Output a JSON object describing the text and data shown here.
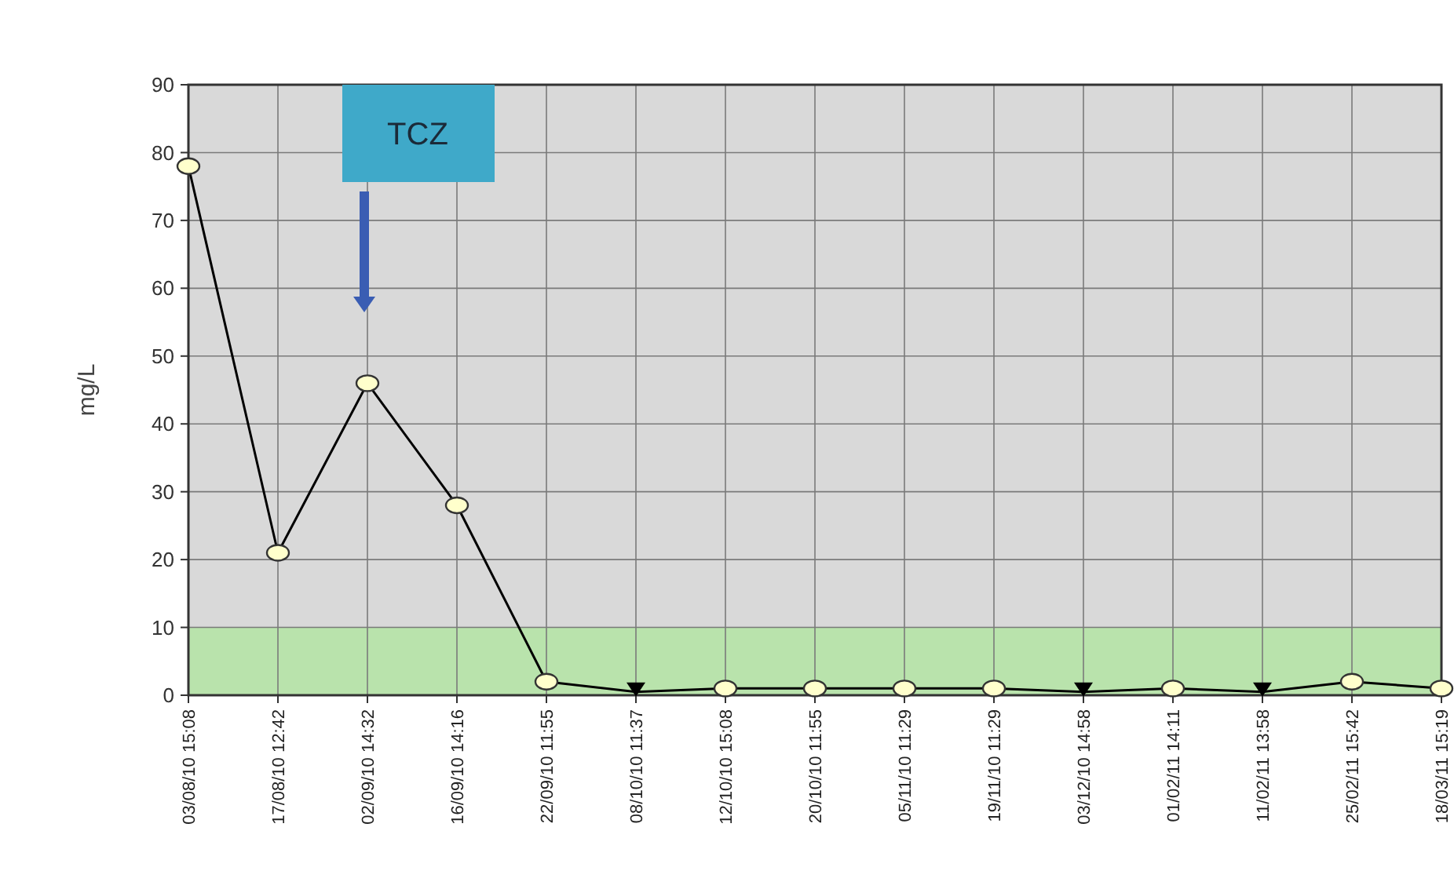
{
  "chart_data": {
    "type": "line",
    "ylabel": "mg/L",
    "categories": [
      "03/08/10 15:08",
      "17/08/10 12:42",
      "02/09/10 14:32",
      "16/09/10 14:16",
      "22/09/10 11:55",
      "08/10/10 11:37",
      "12/10/10 15:08",
      "20/10/10 11:55",
      "05/11/10 11:29",
      "19/11/10 11:29",
      "03/12/10 14:58",
      "01/02/11 14:11",
      "11/02/11 13:58",
      "25/02/11 15:42",
      "18/03/11 15:19"
    ],
    "series": [
      {
        "color": "#000000",
        "marker": "none",
        "values": [
          78,
          21,
          46,
          28,
          2,
          0.5,
          1,
          1,
          1,
          1,
          0.5,
          1,
          0.5,
          2,
          1
        ]
      },
      {
        "type": "scatter",
        "color": "#ffffcc",
        "marker": "circle",
        "values": [
          78,
          21,
          46,
          28,
          2,
          null,
          1,
          1,
          1,
          1,
          null,
          1,
          null,
          2,
          1
        ]
      },
      {
        "type": "scatter",
        "color": "#000000",
        "marker": "triangle",
        "values": [
          null,
          null,
          null,
          null,
          null,
          0.5,
          null,
          null,
          null,
          null,
          0.5,
          null,
          0.5,
          null,
          null
        ]
      }
    ],
    "ylim": [
      0,
      90
    ],
    "yticks": [
      0,
      10,
      20,
      30,
      40,
      50,
      60,
      70,
      80,
      90
    ],
    "grid": true,
    "bands": [
      {
        "axis": "y",
        "from": 0,
        "to": 10,
        "color": "#b5e3a6"
      }
    ],
    "annotations": [
      "TCZ"
    ]
  }
}
